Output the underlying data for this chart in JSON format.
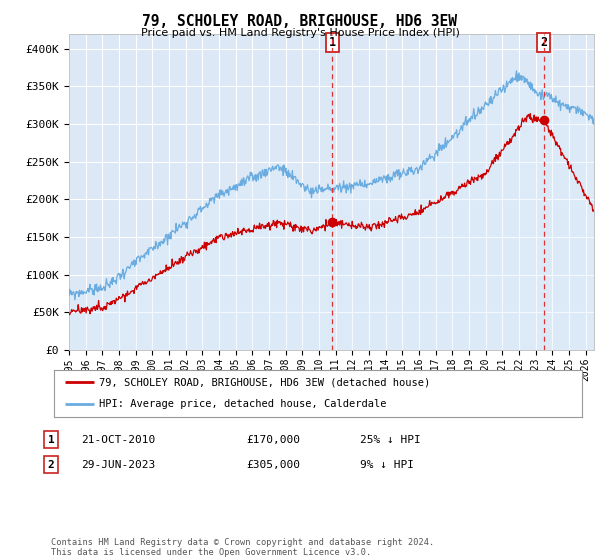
{
  "title": "79, SCHOLEY ROAD, BRIGHOUSE, HD6 3EW",
  "subtitle": "Price paid vs. HM Land Registry's House Price Index (HPI)",
  "ylim": [
    0,
    420000
  ],
  "yticks": [
    0,
    50000,
    100000,
    150000,
    200000,
    250000,
    300000,
    350000,
    400000
  ],
  "ytick_labels": [
    "£0",
    "£50K",
    "£100K",
    "£150K",
    "£200K",
    "£250K",
    "£300K",
    "£350K",
    "£400K"
  ],
  "xlim_start": 1995.0,
  "xlim_end": 2026.5,
  "hpi_color": "#6aace0",
  "hpi_fill": "#ddeeff",
  "price_color": "#cc0000",
  "marker1_date": 2010.8,
  "marker1_price": 170000,
  "marker1_label": "1",
  "marker2_date": 2023.49,
  "marker2_price": 305000,
  "marker2_label": "2",
  "vline_color": "#dd3333",
  "annotation1": [
    "1",
    "21-OCT-2010",
    "£170,000",
    "25% ↓ HPI"
  ],
  "annotation2": [
    "2",
    "29-JUN-2023",
    "£305,000",
    "9% ↓ HPI"
  ],
  "legend_line1": "79, SCHOLEY ROAD, BRIGHOUSE, HD6 3EW (detached house)",
  "legend_line2": "HPI: Average price, detached house, Calderdale",
  "footer": "Contains HM Land Registry data © Crown copyright and database right 2024.\nThis data is licensed under the Open Government Licence v3.0.",
  "background_color": "#dce8f5",
  "grid_color": "#ffffff"
}
